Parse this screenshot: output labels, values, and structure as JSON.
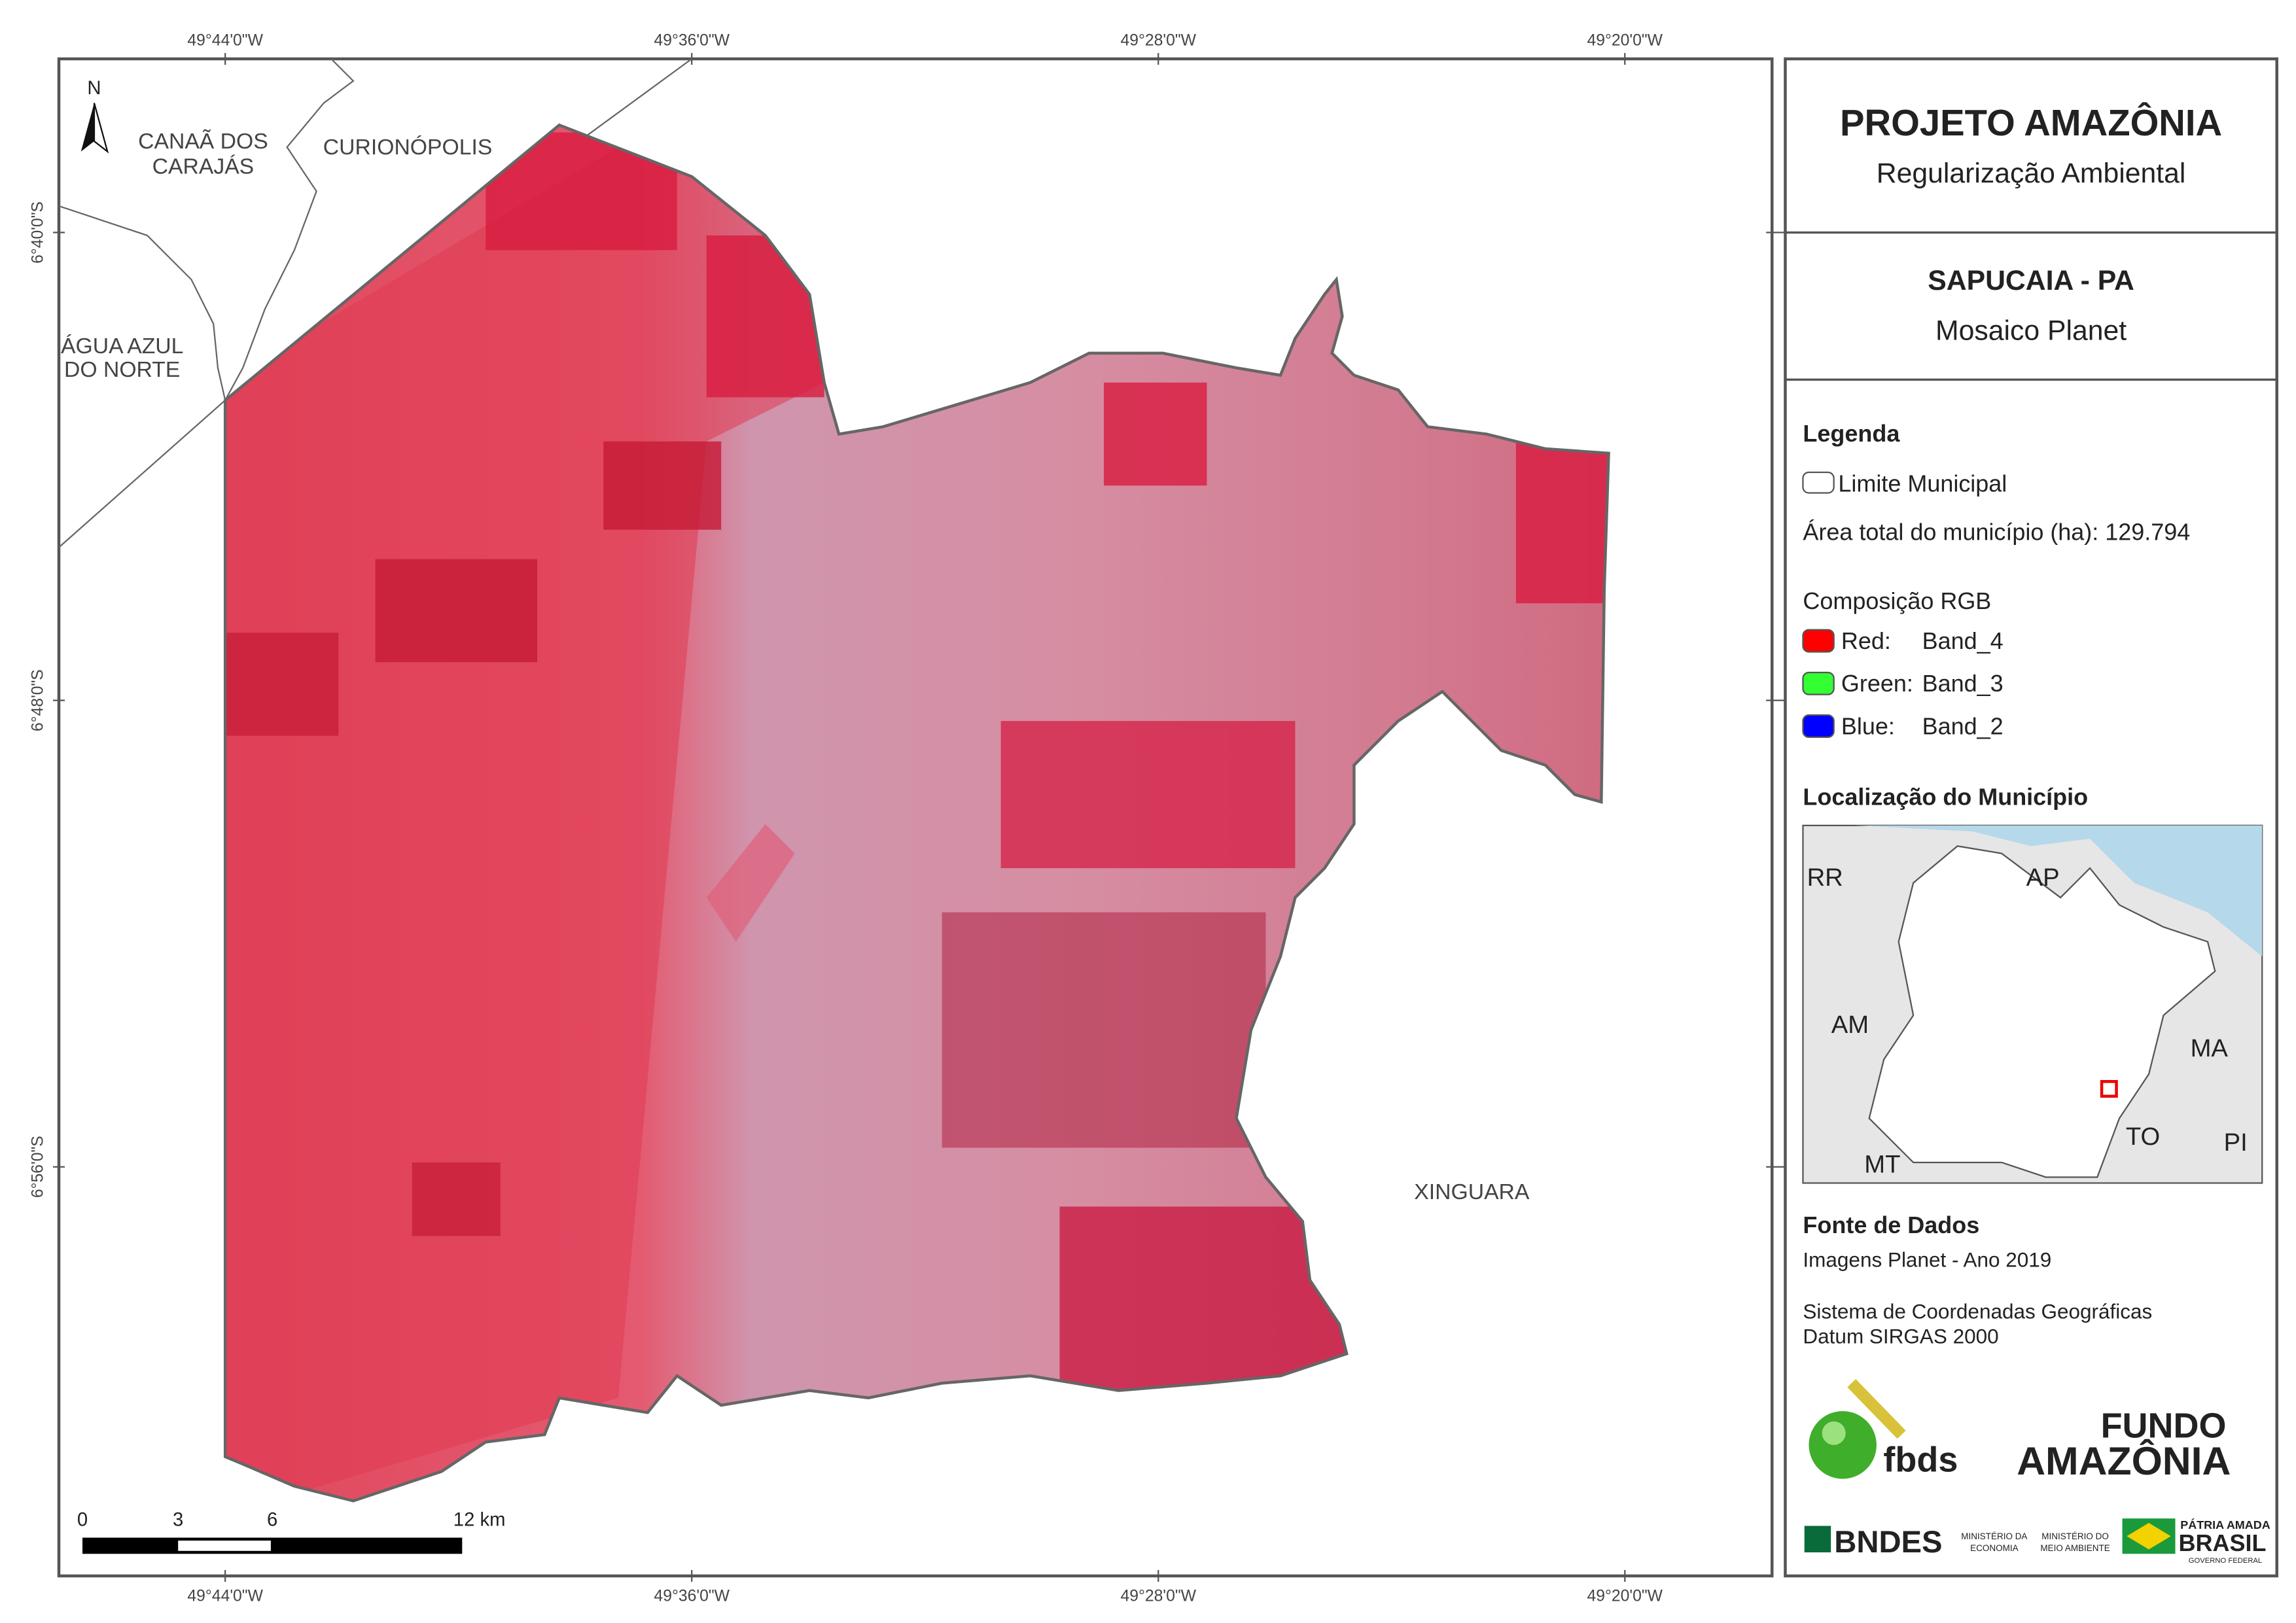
{
  "map": {
    "lon_labels": [
      "49°44'0\"W",
      "49°36'0\"W",
      "49°28'0\"W",
      "49°20'0\"W"
    ],
    "lat_labels": [
      "6°40'0\"S",
      "6°48'0\"S",
      "6°56'0\"S"
    ],
    "north": "N",
    "places": [
      [
        "CANAÃ DOS",
        "CARAJÁS"
      ],
      [
        "CURIONÓPOLIS"
      ],
      [
        "ÁGUA AZUL",
        "DO NORTE"
      ],
      [
        "XINGUARA"
      ]
    ],
    "scale_labels": [
      "0",
      "3",
      "6",
      "12 km"
    ]
  },
  "panel": {
    "title": "PROJETO AMAZÔNIA",
    "subtitle": "Regularização Ambiental",
    "municipality": "SAPUCAIA - PA",
    "product": "Mosaico Planet",
    "legend": {
      "title": "Legenda",
      "boundary": "Limite Municipal",
      "area": "Área total do município (ha): 129.794",
      "rgb_title": "Composição RGB",
      "bands": [
        {
          "channel": "Red:",
          "band": "Band_4",
          "color": "#ff0000"
        },
        {
          "channel": "Green:",
          "band": "Band_3",
          "color": "#33ff33"
        },
        {
          "channel": "Blue:",
          "band": "Band_2",
          "color": "#0000ff"
        }
      ]
    },
    "location": {
      "title": "Localização do Município",
      "states": [
        "RR",
        "AP",
        "AM",
        "MA",
        "TO",
        "PI",
        "MT"
      ]
    },
    "sources": {
      "title": "Fonte de Dados",
      "lines": [
        "Imagens Planet - Ano 2019",
        "Sistema de Coordenadas Geográficas",
        "Datum SIRGAS 2000"
      ]
    },
    "logos": {
      "fbds": "fbds",
      "fundo": [
        "FUNDO",
        "AMAZÔNIA"
      ],
      "bndes": "BNDES",
      "ministries": [
        "MINISTÉRIO DA",
        "ECONOMIA",
        "MINISTÉRIO DO",
        "MEIO AMBIENTE"
      ],
      "brasil": [
        "PÁTRIA AMADA",
        "BRASIL",
        "GOVERNO FEDERAL"
      ]
    }
  }
}
